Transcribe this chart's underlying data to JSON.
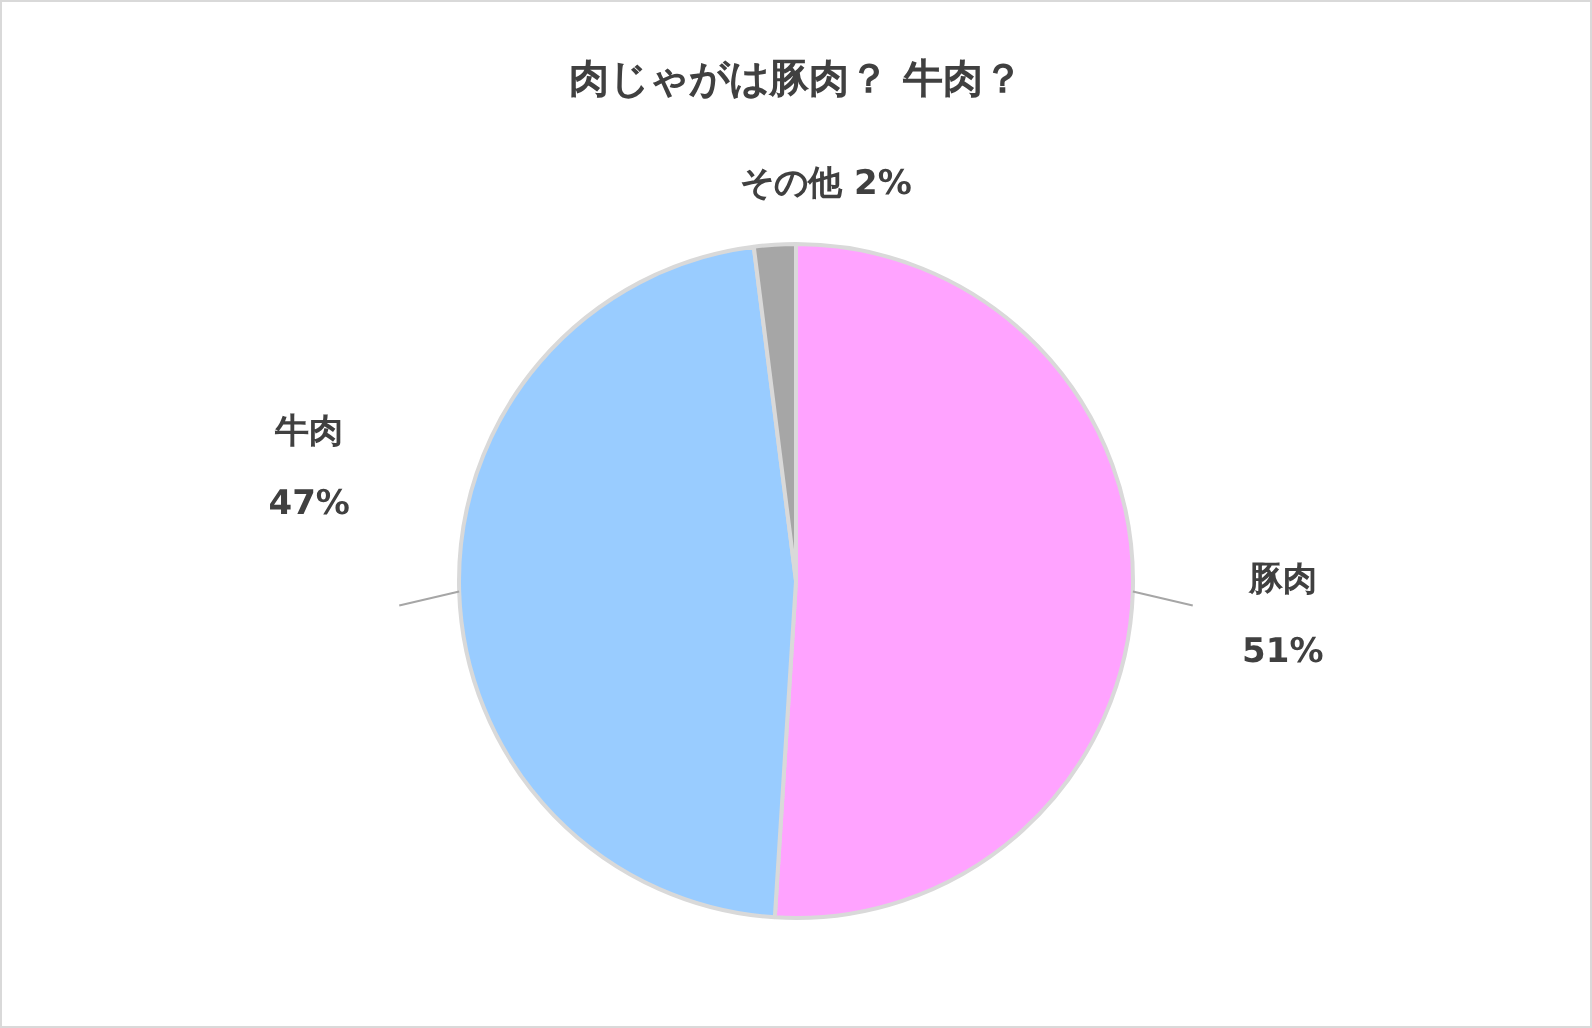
{
  "chart_data": {
    "type": "pie",
    "title": "肉じゃがは豚肉？ 牛肉？",
    "categories": [
      "豚肉",
      "牛肉",
      "その他"
    ],
    "values": [
      51,
      47,
      2
    ],
    "colors": [
      "#ffa3ff",
      "#99ccff",
      "#a6a6a6"
    ],
    "value_labels": [
      "51%",
      "47%",
      "2%"
    ],
    "legend": false
  }
}
